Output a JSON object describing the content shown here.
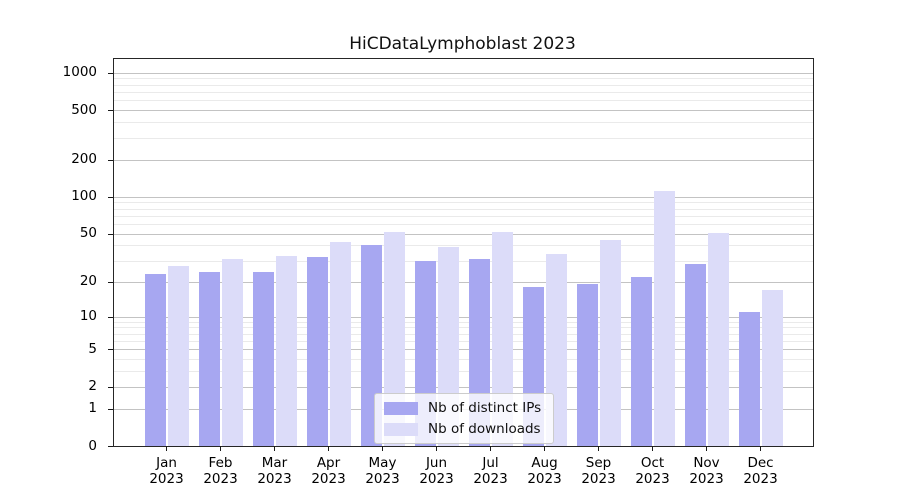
{
  "figure": {
    "background": "#ffffff"
  },
  "chart_data": {
    "type": "bar",
    "title": "HiCDataLymphoblast 2023",
    "categories": [
      "Jan 2023",
      "Feb 2023",
      "Mar 2023",
      "Apr 2023",
      "May 2023",
      "Jun 2023",
      "Jul 2023",
      "Aug 2023",
      "Sep 2023",
      "Oct 2023",
      "Nov 2023",
      "Dec 2023"
    ],
    "series": [
      {
        "name": "Nb of distinct IPs",
        "color": "#a7a7f1",
        "values": [
          23,
          24,
          24,
          32,
          40,
          30,
          31,
          18,
          19,
          22,
          28,
          11
        ]
      },
      {
        "name": "Nb of downloads",
        "color": "#dcdcf9",
        "values": [
          27,
          31,
          33,
          43,
          52,
          39,
          52,
          34,
          44,
          112,
          51,
          17
        ]
      }
    ],
    "yscale": "log1p",
    "ylim": [
      0,
      1300
    ],
    "y_ticks": [
      0,
      1,
      2,
      5,
      10,
      20,
      50,
      100,
      200,
      500,
      1000
    ],
    "y_minor_ticks": [
      3,
      4,
      6,
      7,
      8,
      9,
      30,
      40,
      60,
      70,
      80,
      90,
      300,
      400,
      600,
      700,
      800,
      900
    ],
    "grid": "horizontal",
    "legend": {
      "position": "lower center",
      "entries": [
        "Nb of distinct IPs",
        "Nb of downloads"
      ]
    },
    "colors": {
      "spine": "#262626",
      "grid_major": "#c3c3c3",
      "grid_minor": "#eaeaea",
      "text": "#000000"
    }
  }
}
